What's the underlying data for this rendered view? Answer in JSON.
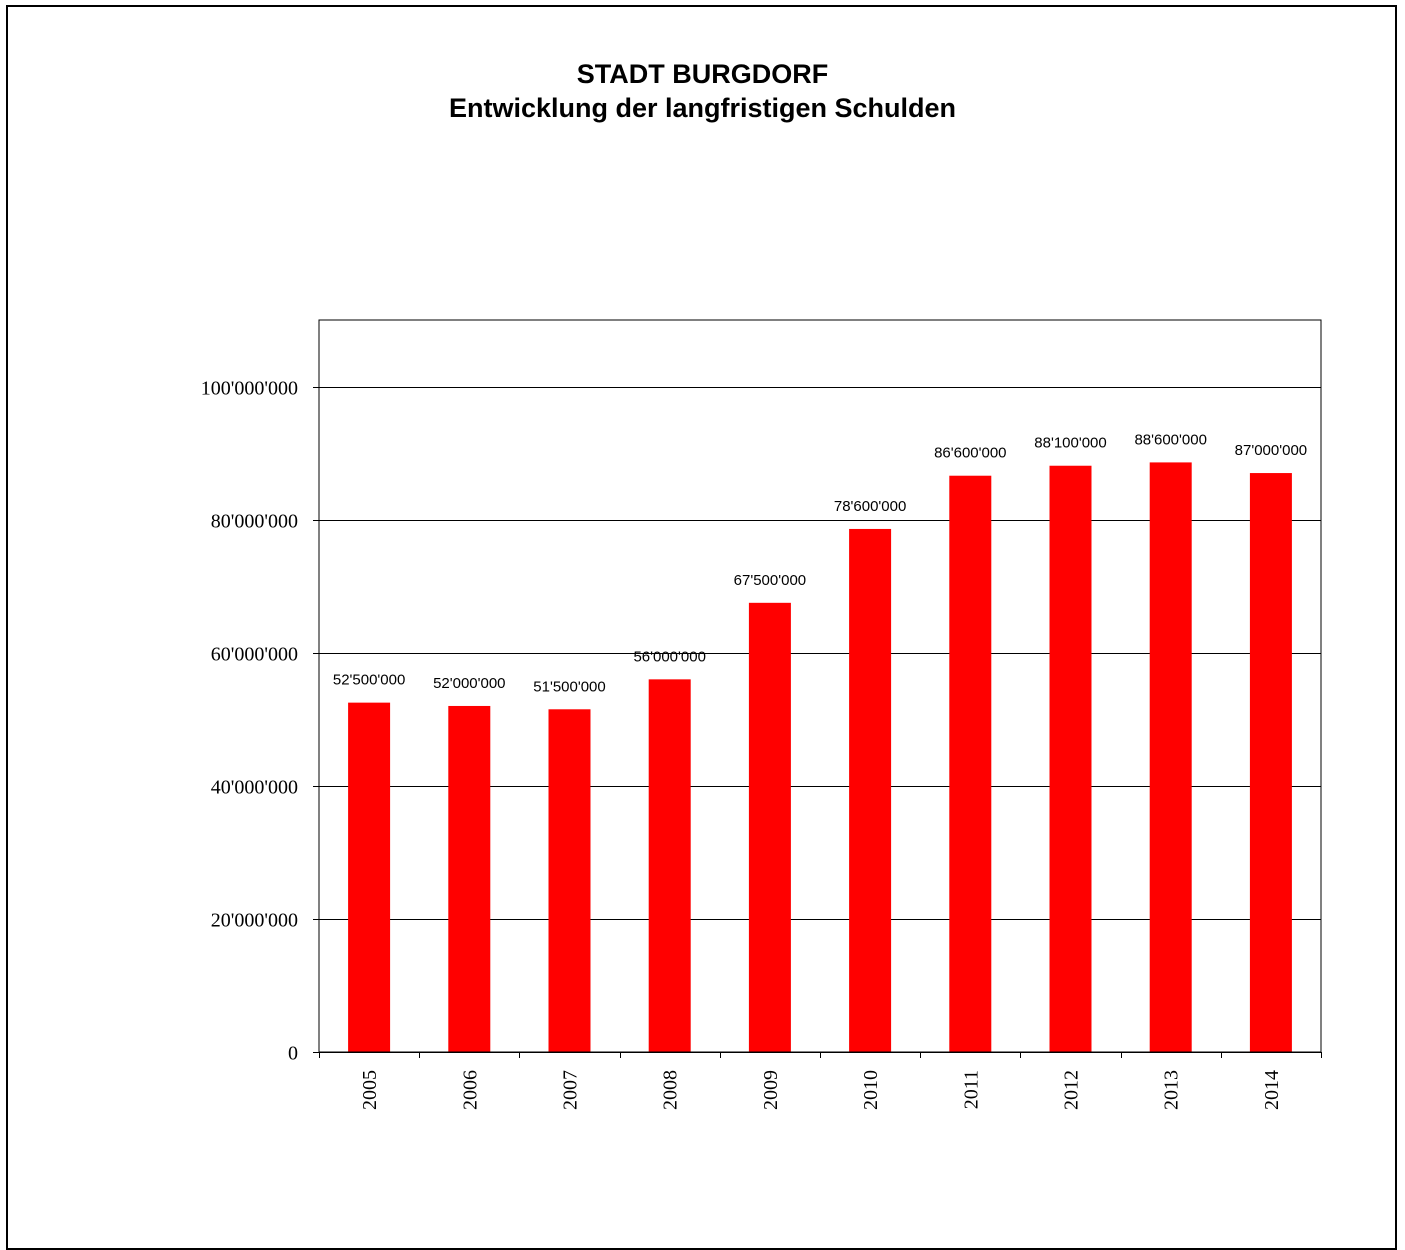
{
  "chart_data": {
    "type": "bar",
    "title": "STADT BURGDORF",
    "subtitle": "Entwicklung der langfristigen Schulden",
    "xlabel": "",
    "ylabel": "",
    "categories": [
      "2005",
      "2006",
      "2007",
      "2008",
      "2009",
      "2010",
      "2011",
      "2012",
      "2013",
      "2014"
    ],
    "values": [
      52500000,
      52000000,
      51500000,
      56000000,
      67500000,
      78600000,
      86600000,
      88100000,
      88600000,
      87000000
    ],
    "data_labels": [
      "52'500'000",
      "52'000'000",
      "51'500'000",
      "56'000'000",
      "67'500'000",
      "78'600'000",
      "86'600'000",
      "88'100'000",
      "88'600'000",
      "87'000'000"
    ],
    "ylim": [
      0,
      110000000
    ],
    "yticks": [
      0,
      20000000,
      40000000,
      60000000,
      80000000,
      100000000
    ],
    "ytick_labels": [
      "0",
      "20'000'000",
      "40'000'000",
      "60'000'000",
      "80'000'000",
      "100'000'000"
    ],
    "grid": true,
    "legend": "none",
    "colors": {
      "bar": "#ff0000",
      "grid": "#000000",
      "axis": "#000000"
    }
  }
}
